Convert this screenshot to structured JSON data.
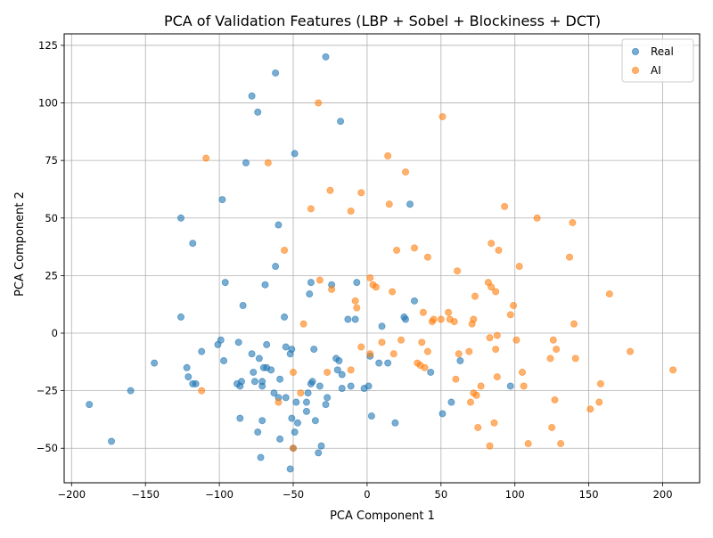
{
  "chart_data": {
    "type": "scatter",
    "title": "PCA of Validation Features (LBP + Sobel + Blockiness + DCT)",
    "xlabel": "PCA Component 1",
    "ylabel": "PCA Component 2",
    "xlim": [
      -205,
      225
    ],
    "ylim": [
      -65,
      130
    ],
    "xticks": [
      -200,
      -150,
      -100,
      -50,
      0,
      50,
      100,
      150,
      200
    ],
    "yticks": [
      -50,
      -25,
      0,
      25,
      50,
      75,
      100,
      125
    ],
    "grid": true,
    "legend_position": "top-right",
    "series": [
      {
        "name": "Real",
        "color": "#1f77b4",
        "points": [
          [
            -188,
            -31
          ],
          [
            -173,
            -47
          ],
          [
            -160,
            -25
          ],
          [
            -144,
            -13
          ],
          [
            -126,
            50
          ],
          [
            -126,
            7
          ],
          [
            -122,
            -15
          ],
          [
            -121,
            -19
          ],
          [
            -118,
            39
          ],
          [
            -118,
            -22
          ],
          [
            -116,
            -22
          ],
          [
            -112,
            -8
          ],
          [
            -101,
            -5
          ],
          [
            -99,
            -3
          ],
          [
            -98,
            58
          ],
          [
            -97,
            -12
          ],
          [
            -96,
            22
          ],
          [
            -88,
            -22
          ],
          [
            -87,
            -4
          ],
          [
            -86,
            -37
          ],
          [
            -86,
            -23
          ],
          [
            -85,
            -21
          ],
          [
            -84,
            12
          ],
          [
            -82,
            74
          ],
          [
            -78,
            103
          ],
          [
            -78,
            -9
          ],
          [
            -77,
            -17
          ],
          [
            -76,
            -21
          ],
          [
            -74,
            96
          ],
          [
            -74,
            -43
          ],
          [
            -73,
            -11
          ],
          [
            -72,
            -54
          ],
          [
            -71,
            -38
          ],
          [
            -71,
            -21
          ],
          [
            -71,
            -23
          ],
          [
            -70,
            -15
          ],
          [
            -69,
            21
          ],
          [
            -68,
            -5
          ],
          [
            -68,
            -15
          ],
          [
            -65,
            -16
          ],
          [
            -63,
            -26
          ],
          [
            -62,
            113
          ],
          [
            -62,
            29
          ],
          [
            -60,
            47
          ],
          [
            -60,
            -28
          ],
          [
            -59,
            -46
          ],
          [
            -59,
            -20
          ],
          [
            -56,
            7
          ],
          [
            -55,
            -6
          ],
          [
            -55,
            -28
          ],
          [
            -52,
            -59
          ],
          [
            -52,
            -9
          ],
          [
            -51,
            -7
          ],
          [
            -51,
            -37
          ],
          [
            -50,
            -50
          ],
          [
            -49,
            78
          ],
          [
            -49,
            -43
          ],
          [
            -48,
            -30
          ],
          [
            -47,
            -39
          ],
          [
            -41,
            -30
          ],
          [
            -41,
            -34
          ],
          [
            -40,
            -26
          ],
          [
            -39,
            17
          ],
          [
            -38,
            22
          ],
          [
            -38,
            -22
          ],
          [
            -37,
            -21
          ],
          [
            -36,
            -7
          ],
          [
            -35,
            -38
          ],
          [
            -33,
            -52
          ],
          [
            -32,
            -23
          ],
          [
            -31,
            -49
          ],
          [
            -28,
            120
          ],
          [
            -28,
            -31
          ],
          [
            -27,
            -28
          ],
          [
            -24,
            21
          ],
          [
            -21,
            -11
          ],
          [
            -20,
            -16
          ],
          [
            -19,
            -12
          ],
          [
            -18,
            92
          ],
          [
            -17,
            -18
          ],
          [
            -17,
            -24
          ],
          [
            -13,
            6
          ],
          [
            -11,
            -23
          ],
          [
            -8,
            6
          ],
          [
            -7,
            22
          ],
          [
            -2,
            -24
          ],
          [
            1,
            -23
          ],
          [
            2,
            -10
          ],
          [
            3,
            -36
          ],
          [
            8,
            -13
          ],
          [
            10,
            3
          ],
          [
            14,
            -13
          ],
          [
            19,
            -39
          ],
          [
            25,
            7
          ],
          [
            26,
            6
          ],
          [
            29,
            56
          ],
          [
            32,
            14
          ],
          [
            43,
            -17
          ],
          [
            51,
            -35
          ],
          [
            57,
            -30
          ],
          [
            63,
            -12
          ],
          [
            97,
            -23
          ]
        ]
      },
      {
        "name": "AI",
        "color": "#ff7f0e",
        "points": [
          [
            -112,
            -25
          ],
          [
            -109,
            76
          ],
          [
            -67,
            74
          ],
          [
            -60,
            -30
          ],
          [
            -56,
            36
          ],
          [
            -50,
            -50
          ],
          [
            -50,
            -17
          ],
          [
            -45,
            -26
          ],
          [
            -43,
            4
          ],
          [
            -38,
            54
          ],
          [
            -33,
            100
          ],
          [
            -32,
            23
          ],
          [
            -27,
            -17
          ],
          [
            -25,
            62
          ],
          [
            -24,
            19
          ],
          [
            -11,
            53
          ],
          [
            -11,
            -16
          ],
          [
            -8,
            14
          ],
          [
            -7,
            11
          ],
          [
            -4,
            61
          ],
          [
            -4,
            -6
          ],
          [
            2,
            24
          ],
          [
            2,
            -9
          ],
          [
            4,
            21
          ],
          [
            6,
            20
          ],
          [
            10,
            -4
          ],
          [
            14,
            77
          ],
          [
            15,
            56
          ],
          [
            17,
            18
          ],
          [
            18,
            -9
          ],
          [
            20,
            36
          ],
          [
            23,
            -3
          ],
          [
            26,
            70
          ],
          [
            32,
            37
          ],
          [
            34,
            -13
          ],
          [
            36,
            -14
          ],
          [
            37,
            -4
          ],
          [
            38,
            9
          ],
          [
            39,
            -15
          ],
          [
            41,
            -8
          ],
          [
            41,
            33
          ],
          [
            44,
            5
          ],
          [
            45,
            6
          ],
          [
            50,
            6
          ],
          [
            51,
            94
          ],
          [
            55,
            9
          ],
          [
            56,
            6
          ],
          [
            59,
            5
          ],
          [
            60,
            -20
          ],
          [
            61,
            27
          ],
          [
            62,
            -9
          ],
          [
            69,
            -8
          ],
          [
            70,
            -30
          ],
          [
            71,
            4
          ],
          [
            72,
            6
          ],
          [
            72,
            -26
          ],
          [
            73,
            16
          ],
          [
            74,
            -27
          ],
          [
            75,
            -41
          ],
          [
            77,
            -23
          ],
          [
            82,
            22
          ],
          [
            83,
            -2
          ],
          [
            83,
            -49
          ],
          [
            84,
            39
          ],
          [
            84,
            20
          ],
          [
            86,
            -39
          ],
          [
            87,
            18
          ],
          [
            87,
            -7
          ],
          [
            88,
            -1
          ],
          [
            88,
            -19
          ],
          [
            89,
            36
          ],
          [
            93,
            55
          ],
          [
            97,
            8
          ],
          [
            99,
            12
          ],
          [
            101,
            -3
          ],
          [
            103,
            29
          ],
          [
            105,
            -17
          ],
          [
            106,
            -23
          ],
          [
            109,
            -48
          ],
          [
            115,
            50
          ],
          [
            124,
            -11
          ],
          [
            125,
            -41
          ],
          [
            126,
            -3
          ],
          [
            127,
            -29
          ],
          [
            128,
            -7
          ],
          [
            131,
            -48
          ],
          [
            137,
            33
          ],
          [
            139,
            48
          ],
          [
            140,
            4
          ],
          [
            141,
            -11
          ],
          [
            151,
            -33
          ],
          [
            157,
            -30
          ],
          [
            158,
            -22
          ],
          [
            164,
            17
          ],
          [
            178,
            -8
          ],
          [
            207,
            -16
          ]
        ]
      }
    ]
  }
}
